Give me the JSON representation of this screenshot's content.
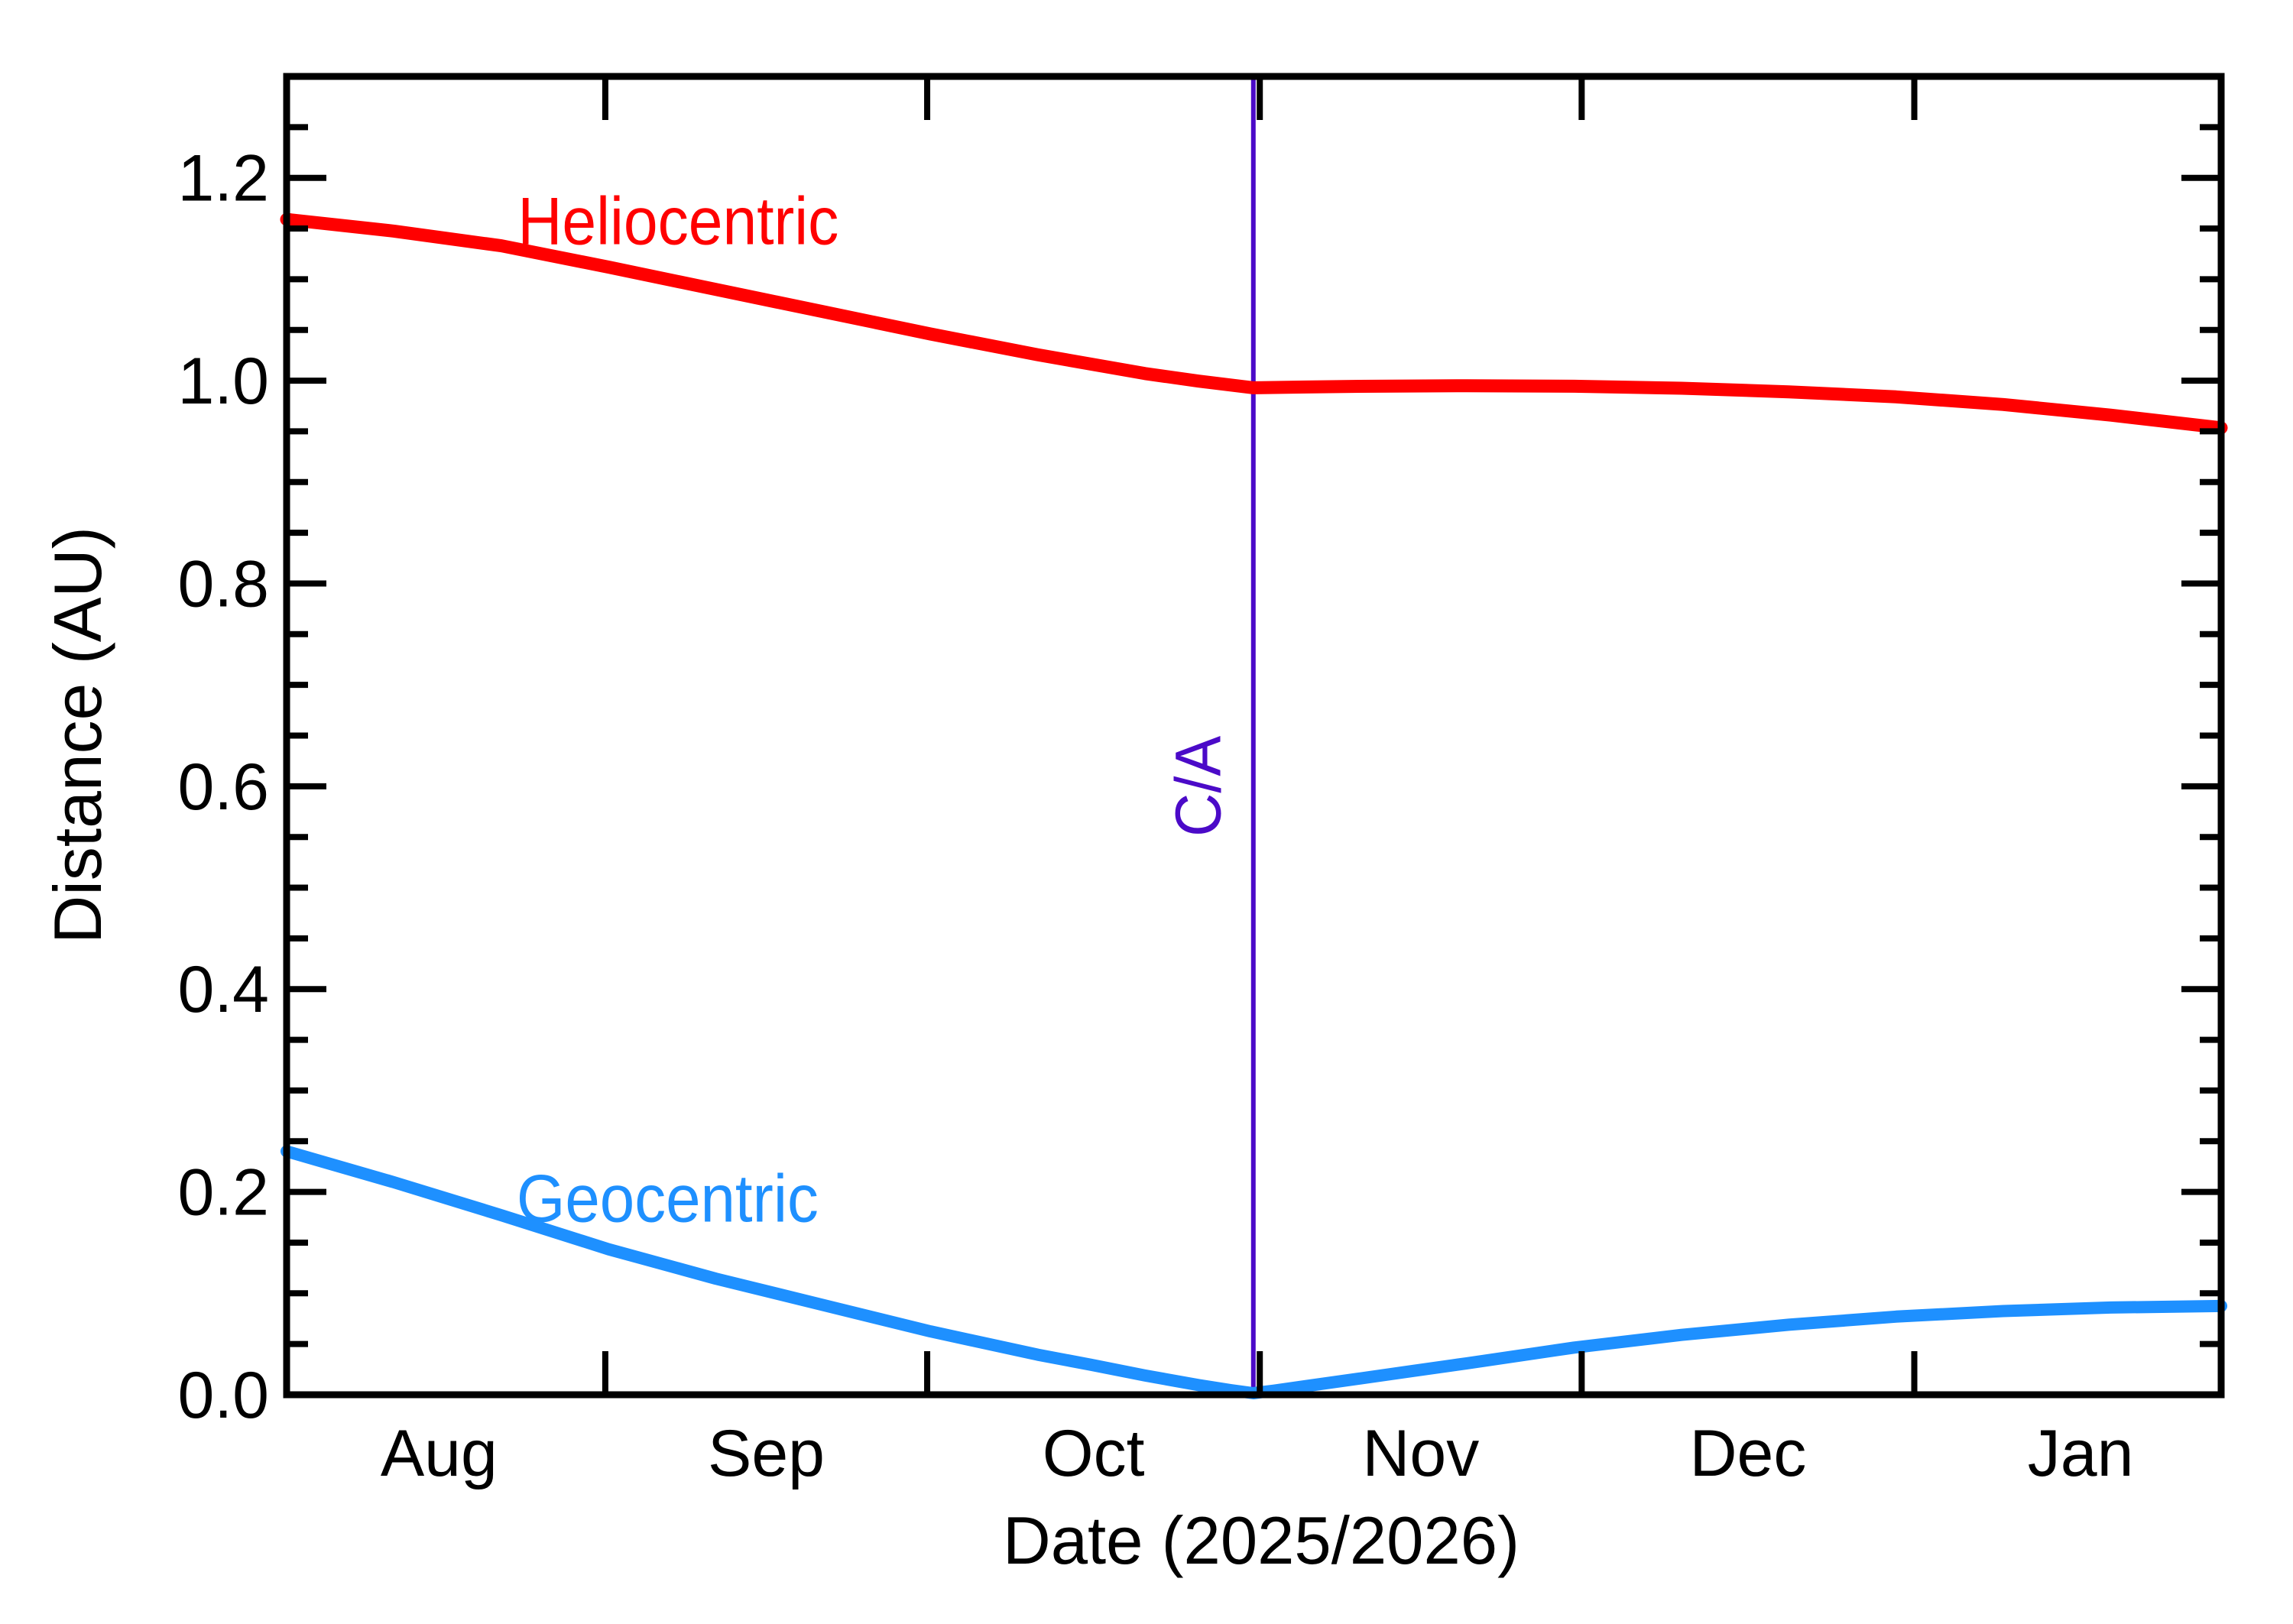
{
  "figure": {
    "x_axis_title": "Date (2025/2026)",
    "y_axis_title": "Distance (AU)",
    "background": "#ffffff",
    "axis_color": "#000000"
  },
  "chart_data": {
    "type": "line",
    "title": "",
    "xlabel": "Date (2025/2026)",
    "ylabel": "Distance (AU)",
    "x_unit": "days from left edge of plot (≈ 2025 Aug 2)",
    "xlim": [
      0,
      180.3
    ],
    "ylim": [
      0,
      1.3
    ],
    "grid": false,
    "y_major_tick_step": 0.2,
    "y_minor_tick_step": 0.05,
    "y_tick_labels": [
      "0.0",
      "0.2",
      "0.4",
      "0.6",
      "0.8",
      "1.0",
      "1.2"
    ],
    "y_tick_values": [
      0,
      0.2,
      0.4,
      0.6,
      0.8,
      1.0,
      1.2
    ],
    "months": [
      {
        "label": "Aug",
        "start_day": -1.3,
        "end_day": 29.7
      },
      {
        "label": "Sep",
        "start_day": 29.7,
        "end_day": 59.7
      },
      {
        "label": "Oct",
        "start_day": 59.7,
        "end_day": 90.7
      },
      {
        "label": "Nov",
        "start_day": 90.7,
        "end_day": 120.7
      },
      {
        "label": "Dec",
        "start_day": 120.7,
        "end_day": 151.7
      },
      {
        "label": "Jan",
        "start_day": 151.7,
        "end_day": 182.7
      }
    ],
    "close_approach": {
      "label": "C/A",
      "day": 90.1,
      "color": "#4b0ac8",
      "label_day": 87.0,
      "label_au": 0.6,
      "label_text_length": 132
    },
    "series": [
      {
        "name": "Heliocentric",
        "color": "#ff0000",
        "stroke_width": 17,
        "label_day": 36.5,
        "label_au": 1.158,
        "label_text_length": 420,
        "points": [
          [
            0,
            1.159
          ],
          [
            10,
            1.1475
          ],
          [
            20,
            1.133
          ],
          [
            30,
            1.112
          ],
          [
            40,
            1.09
          ],
          [
            50,
            1.068
          ],
          [
            60,
            1.046
          ],
          [
            70,
            1.0255
          ],
          [
            80,
            1.007
          ],
          [
            85,
            0.9995
          ],
          [
            90.1,
            0.993
          ],
          [
            95,
            0.9937
          ],
          [
            100,
            0.9944
          ],
          [
            110,
            0.995
          ],
          [
            120,
            0.9945
          ],
          [
            130,
            0.9925
          ],
          [
            140,
            0.989
          ],
          [
            150,
            0.984
          ],
          [
            160,
            0.9765
          ],
          [
            170,
            0.966
          ],
          [
            180.3,
            0.9535
          ]
        ]
      },
      {
        "name": "Geocentric",
        "color": "#1e90ff",
        "stroke_width": 16,
        "label_day": 35.5,
        "label_au": 0.194,
        "label_text_length": 395,
        "points": [
          [
            0,
            0.24
          ],
          [
            10,
            0.2095
          ],
          [
            20,
            0.177
          ],
          [
            30,
            0.1435
          ],
          [
            40,
            0.1145
          ],
          [
            50,
            0.0885
          ],
          [
            60,
            0.0625
          ],
          [
            70,
            0.0395
          ],
          [
            75,
            0.0295
          ],
          [
            80,
            0.019
          ],
          [
            85,
            0.0095
          ],
          [
            88,
            0.0045
          ],
          [
            90.1,
            0.0015
          ],
          [
            92,
            0.004
          ],
          [
            95,
            0.0085
          ],
          [
            100,
            0.016
          ],
          [
            105,
            0.0235
          ],
          [
            110,
            0.031
          ],
          [
            120,
            0.0465
          ],
          [
            130,
            0.059
          ],
          [
            140,
            0.069
          ],
          [
            150,
            0.077
          ],
          [
            160,
            0.0825
          ],
          [
            170,
            0.086
          ],
          [
            180.3,
            0.0875
          ]
        ]
      }
    ]
  }
}
